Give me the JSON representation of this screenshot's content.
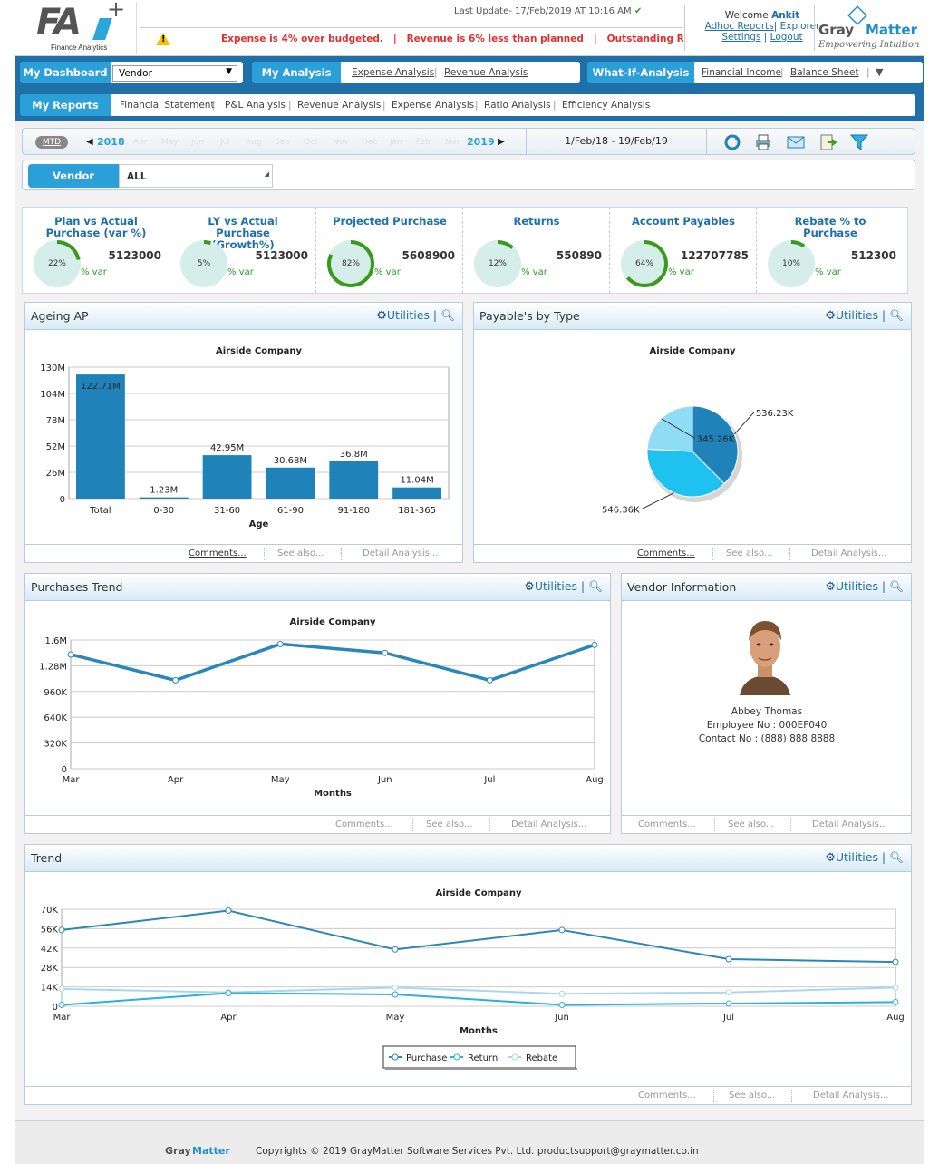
{
  "header": {
    "logo_text": "FA",
    "logo_plus": "+",
    "logo_sub": "Finance Analytics",
    "last_update": "Last Update- 17/Feb/2019 AT 10:16 AM",
    "alerts": "Expense is 4% over budgeted.   |   Revenue is 6% less than planned   |   Outstanding R",
    "welcome_prefix": "Welcome",
    "user": "Ankit",
    "links": [
      "Adhoc Reports",
      "Explorer",
      "Settings",
      "Logout"
    ],
    "gm_gray": "Gray",
    "gm_matter": "Matter",
    "gm_tagline": "Empowering Intuition"
  },
  "nav1": {
    "dashboard": "My Dashboard",
    "dashboard_select": "Vendor",
    "analysis": "My Analysis",
    "analysis_links": [
      "Expense Analysis",
      "Revenue Analysis"
    ],
    "whatif": "What-If-Analysis",
    "whatif_links": [
      "Financial Income",
      "Balance Sheet"
    ]
  },
  "nav2": {
    "reports": "My Reports",
    "report_links": [
      "Financial Statement",
      "P&L Analysis",
      "Revenue Analysis",
      "Expense Analysis",
      "Ratio Analysis",
      "Efficiency Analysis"
    ]
  },
  "toolbar": {
    "mtd": "MTD",
    "year_start": "2018",
    "months": [
      "Apr",
      "May",
      "Jun",
      "Jul",
      "Aug",
      "Sep",
      "Oct",
      "Nov",
      "Dec",
      "Jan",
      "Feb",
      "Mar"
    ],
    "year_end": "2019",
    "date_range": "1/Feb/18 - 19/Feb/19",
    "icons": [
      "refresh-icon",
      "print-icon",
      "email-icon",
      "export-icon",
      "filter-icon"
    ]
  },
  "filter": {
    "label": "Vendor",
    "value": "ALL"
  },
  "kpis": [
    {
      "title": "Plan vs Actual Purchase (var %)",
      "pct": 22,
      "value": "5123000",
      "var": "% var"
    },
    {
      "title": "LY vs Actual Purchase (Growth%)",
      "pct": 5,
      "value": "5123000",
      "var": "% var"
    },
    {
      "title": "Projected Purchase",
      "pct": 82,
      "value": "5608900",
      "var": "% var"
    },
    {
      "title": "Returns",
      "pct": 12,
      "value": "550890",
      "var": "% var"
    },
    {
      "title": "Account Payables",
      "pct": 64,
      "value": "122707785",
      "var": "% var"
    },
    {
      "title": "Rebate % to Purchase",
      "pct": 10,
      "value": "512300",
      "var": "% var"
    }
  ],
  "panel_common": {
    "utilities": "Utilities",
    "comments": "Comments...",
    "see_also": "See also...",
    "detail": "Detail Analysis..."
  },
  "colors": {
    "accent": "#2b9fd8",
    "nav": "#1f6fa8",
    "bar": "#1f82b8",
    "line": "#2b87b8",
    "ring": "#3a9a1e"
  },
  "ageing": {
    "title": "Ageing AP",
    "chart_data": {
      "type": "bar",
      "title": "Airside Company",
      "xlabel": "Age",
      "ylabel": "",
      "categories": [
        "Total",
        "0-30",
        "31-60",
        "61-90",
        "91-180",
        "181-365"
      ],
      "values": [
        122.71,
        1.23,
        42.95,
        30.68,
        36.8,
        11.04
      ],
      "value_labels": [
        "122.71M",
        "1.23M",
        "42.95M",
        "30.68M",
        "36.8M",
        "11.04M"
      ],
      "yticks": [
        "130M",
        "104M",
        "78M",
        "52M",
        "26M",
        "0"
      ],
      "ylim": [
        0,
        130
      ]
    }
  },
  "payables": {
    "title": "Payable's by Type",
    "chart_data": {
      "type": "pie",
      "title": "Airside Company",
      "values": [
        536.23,
        546.36,
        345.26
      ],
      "labels": [
        "536.23K",
        "546.36K",
        "345.26K"
      ],
      "colors": [
        "#1f82b8",
        "#1ec1f0",
        "#8fdcf5"
      ]
    }
  },
  "purchases": {
    "title": "Purchases Trend",
    "chart_data": {
      "type": "line",
      "title": "Airside Company",
      "xlabel": "Months",
      "categories": [
        "Mar",
        "Apr",
        "May",
        "Jun",
        "Jul",
        "Aug"
      ],
      "values": [
        1420000,
        1100000,
        1550000,
        1440000,
        1100000,
        1540000
      ],
      "yticks": [
        "1.6M",
        "1.28M",
        "960K",
        "640K",
        "320K",
        "0"
      ],
      "ylim": [
        0,
        1600000
      ]
    }
  },
  "vendor": {
    "title": "Vendor Information",
    "name": "Abbey Thomas",
    "employee": "Employee No : 000EF040",
    "contact": "Contact No : (888) 888 8888"
  },
  "trend": {
    "title": "Trend",
    "chart_data": {
      "type": "line",
      "title": "Airside Company",
      "xlabel": "Months",
      "categories": [
        "Mar",
        "Apr",
        "May",
        "Jun",
        "Jul",
        "Aug"
      ],
      "yticks": [
        "70K",
        "56K",
        "42K",
        "28K",
        "14K",
        "0"
      ],
      "ylim": [
        0,
        70000
      ],
      "series": [
        {
          "name": "Purchase",
          "values": [
            55000,
            69000,
            41000,
            55000,
            34000,
            32000
          ],
          "color": "#2b87b8"
        },
        {
          "name": "Return",
          "values": [
            1000,
            9500,
            8500,
            1000,
            2000,
            3000
          ],
          "color": "#2bb0e0"
        },
        {
          "name": "Rebate",
          "values": [
            12500,
            10000,
            13500,
            9000,
            10000,
            13500
          ],
          "color": "#a8d8ee"
        }
      ]
    }
  },
  "footer": {
    "gm_gray": "Gray",
    "gm_matter": "Matter",
    "copyright": "Copyrights © 2019 GrayMatter Software Services Pvt. Ltd. productsupport@graymatter.co.in"
  }
}
